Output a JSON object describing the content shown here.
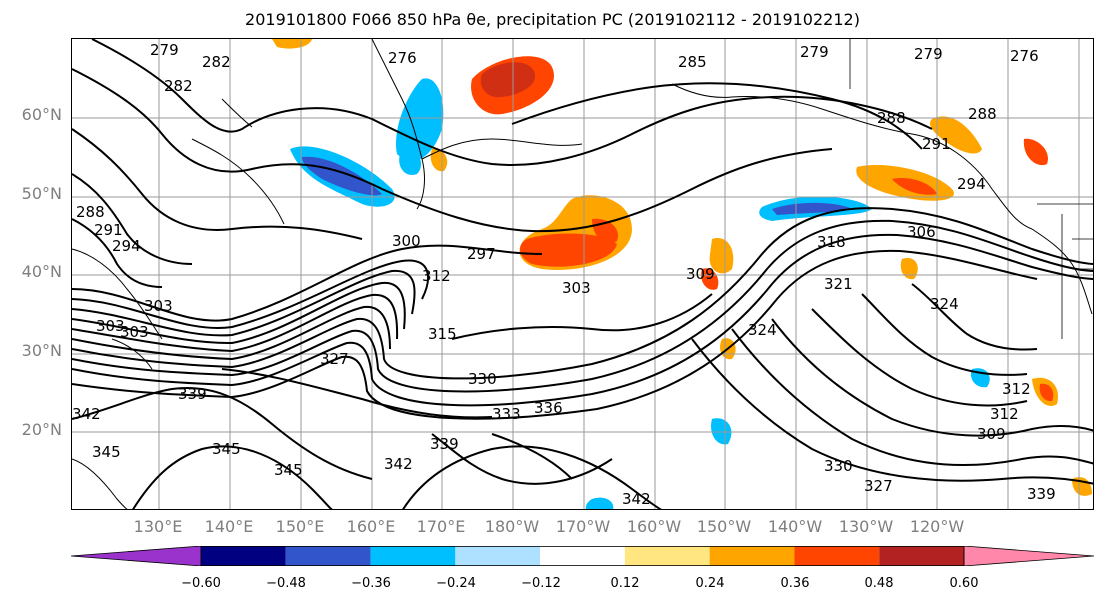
{
  "title": "2019101800 F066 850 hPa θe, precipitation PC (2019102112 - 2019102212)",
  "lat_labels": [
    "60°N",
    "50°N",
    "40°N",
    "30°N",
    "20°N"
  ],
  "lon_labels": [
    "130°E",
    "140°E",
    "150°E",
    "160°E",
    "170°E",
    "180°W",
    "170°W",
    "160°W",
    "150°W",
    "140°W",
    "130°W",
    "120°W"
  ],
  "contour_labels": [
    "279",
    "282",
    "282",
    "276",
    "285",
    "279",
    "279",
    "276",
    "288",
    "288",
    "291",
    "294",
    "288",
    "291",
    "294",
    "300",
    "297",
    "318",
    "306",
    "303",
    "309",
    "312",
    "315",
    "321",
    "324",
    "303",
    "303",
    "303",
    "327",
    "324",
    "330",
    "312",
    "312",
    "339",
    "336",
    "333",
    "339",
    "309",
    "345",
    "345",
    "345",
    "342",
    "342",
    "330",
    "327",
    "339",
    "342"
  ],
  "colorbar": {
    "ticks": [
      "−0.60",
      "−0.48",
      "−0.36",
      "−0.24",
      "−0.12",
      "0.12",
      "0.24",
      "0.36",
      "0.48",
      "0.60"
    ],
    "colors": [
      "#9933cc",
      "#000080",
      "#3355cc",
      "#00bfff",
      "#aee0ff",
      "#ffffff",
      "#ffe680",
      "#ffa500",
      "#ff4500",
      "#b22222",
      "#ff88aa"
    ]
  },
  "colors": {
    "contour": "#000000",
    "grid": "#9a9a9a",
    "coast": "#000000",
    "tick_label": "#7f7f7f"
  }
}
